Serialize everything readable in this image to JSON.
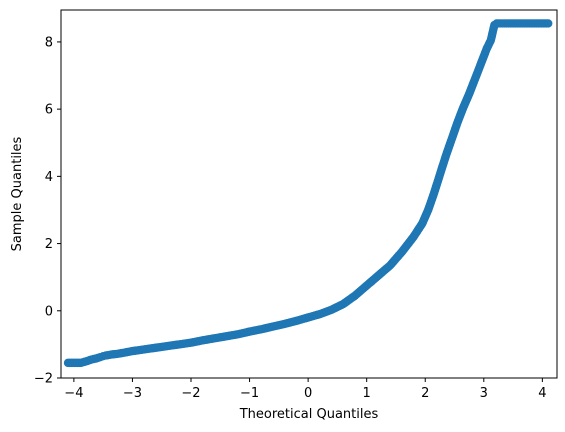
{
  "chart_data": {
    "type": "scatter",
    "title": "",
    "xlabel": "Theoretical Quantiles",
    "ylabel": "Sample Quantiles",
    "xlim": [
      -4.22,
      4.25
    ],
    "ylim": [
      -2.0,
      8.95
    ],
    "xticks": [
      -4,
      -3,
      -2,
      -1,
      0,
      1,
      2,
      3,
      4
    ],
    "yticks": [
      -2,
      0,
      2,
      4,
      6,
      8
    ],
    "xtick_labels": [
      "−4",
      "−3",
      "−2",
      "−1",
      "0",
      "1",
      "2",
      "3",
      "4"
    ],
    "ytick_labels": [
      "−2",
      "0",
      "2",
      "4",
      "6",
      "8"
    ],
    "grid": false,
    "legend": false,
    "marker_color": "#1f77b4",
    "series": [
      {
        "x": [
          -4.1,
          -3.88,
          -3.78,
          -3.7,
          -3.62,
          -3.55,
          -3.5,
          -3.45,
          -3.35,
          -3.25,
          -3.15,
          -3.0,
          -2.8,
          -2.6,
          -2.4,
          -2.2,
          -2.0,
          -1.8,
          -1.6,
          -1.4,
          -1.2,
          -1.0,
          -0.8,
          -0.6,
          -0.4,
          -0.2,
          0.0,
          0.2,
          0.4,
          0.6,
          0.8,
          1.0,
          1.2,
          1.4,
          1.6,
          1.8,
          1.95,
          2.05,
          2.15,
          2.25,
          2.35,
          2.45,
          2.55,
          2.65,
          2.75,
          2.85,
          2.95,
          3.05,
          3.12,
          3.18,
          3.22,
          3.28,
          3.35,
          3.45,
          3.6,
          3.75,
          3.9,
          4.1
        ],
        "y": [
          -1.55,
          -1.55,
          -1.5,
          -1.45,
          -1.42,
          -1.38,
          -1.35,
          -1.33,
          -1.3,
          -1.28,
          -1.25,
          -1.2,
          -1.15,
          -1.1,
          -1.05,
          -1.0,
          -0.95,
          -0.88,
          -0.82,
          -0.76,
          -0.7,
          -0.62,
          -0.55,
          -0.47,
          -0.39,
          -0.3,
          -0.2,
          -0.1,
          0.03,
          0.2,
          0.45,
          0.75,
          1.05,
          1.35,
          1.75,
          2.2,
          2.6,
          3.0,
          3.5,
          4.05,
          4.6,
          5.1,
          5.6,
          6.05,
          6.45,
          6.9,
          7.35,
          7.8,
          8.05,
          8.5,
          8.55,
          8.55,
          8.55,
          8.55,
          8.55,
          8.55,
          8.55,
          8.55
        ]
      }
    ]
  }
}
